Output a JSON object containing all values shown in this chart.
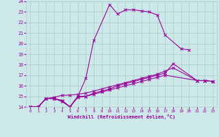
{
  "xlabel": "Windchill (Refroidissement éolien,°C)",
  "xlim": [
    -0.5,
    23.5
  ],
  "ylim": [
    14,
    24
  ],
  "yticks": [
    14,
    15,
    16,
    17,
    18,
    19,
    20,
    21,
    22,
    23,
    24
  ],
  "xticks": [
    0,
    1,
    2,
    3,
    4,
    5,
    6,
    7,
    8,
    9,
    10,
    11,
    12,
    13,
    14,
    15,
    16,
    17,
    18,
    19,
    20,
    21,
    22,
    23
  ],
  "line_color": "#990099",
  "bg_color": "#cce8e8",
  "grid_color": "#aacccc",
  "s1_x": [
    0,
    1,
    2,
    3,
    4,
    5,
    6,
    7,
    8,
    10,
    11,
    12,
    13,
    14,
    15,
    16,
    17,
    19,
    20
  ],
  "s1_y": [
    14,
    14,
    14.8,
    14.8,
    14.6,
    14.0,
    15.0,
    16.7,
    20.3,
    23.7,
    22.8,
    23.2,
    23.2,
    23.1,
    23.0,
    22.7,
    20.8,
    19.5,
    19.4
  ],
  "s2_x": [
    0,
    1,
    2,
    3,
    4,
    5,
    6,
    7,
    8,
    9,
    10,
    11,
    12,
    13,
    14,
    15,
    16,
    17,
    18,
    21,
    22,
    23
  ],
  "s2_y": [
    14,
    14,
    14.8,
    14.9,
    15.1,
    15.1,
    15.2,
    15.3,
    15.5,
    15.7,
    15.9,
    16.1,
    16.3,
    16.5,
    16.7,
    16.9,
    17.1,
    17.4,
    17.7,
    16.5,
    16.5,
    16.4
  ],
  "s3_x": [
    0,
    1,
    2,
    3,
    4,
    5,
    6,
    7,
    8,
    9,
    10,
    11,
    12,
    13,
    14,
    15,
    16,
    17,
    18,
    21,
    22,
    23
  ],
  "s3_y": [
    14,
    14,
    14.8,
    14.8,
    14.6,
    14.0,
    14.9,
    15.0,
    15.3,
    15.5,
    15.7,
    16.0,
    16.2,
    16.4,
    16.6,
    16.8,
    17.0,
    17.2,
    18.1,
    16.5,
    16.5,
    16.4
  ],
  "s4_x": [
    0,
    1,
    2,
    3,
    4,
    5,
    6,
    7,
    8,
    9,
    10,
    11,
    12,
    13,
    14,
    15,
    16,
    17,
    21,
    22,
    23
  ],
  "s4_y": [
    14,
    14,
    14.8,
    14.8,
    14.5,
    14.0,
    15.0,
    15.0,
    15.2,
    15.4,
    15.6,
    15.8,
    16.0,
    16.2,
    16.4,
    16.6,
    16.8,
    17.0,
    16.5,
    16.5,
    16.4
  ]
}
